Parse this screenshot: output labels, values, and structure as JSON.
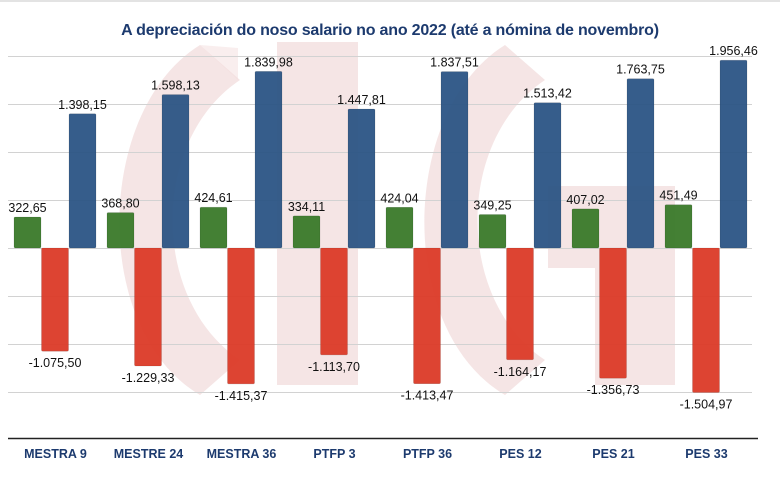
{
  "chart_data": {
    "type": "bar",
    "title": "A depreciación do noso salario no ano 2022 (até a nómina de novembro)",
    "xlabel": "",
    "ylabel": "",
    "ylim": [
      -2000,
      2000
    ],
    "y_gridline_step": 500,
    "grid": true,
    "legend": "none",
    "categories": [
      "MESTRA 9",
      "MESTRE 24",
      "MESTRA 36",
      "PTFP 3",
      "PTFP 36",
      "PES 12",
      "PES 21",
      "PES 33"
    ],
    "series": [
      {
        "name": "green",
        "color": "#3a7a2a",
        "values": [
          322.65,
          368.8,
          424.61,
          334.11,
          424.04,
          349.25,
          407.02,
          451.49
        ],
        "labels": [
          "322,65",
          "368,80",
          "424,61",
          "334,11",
          "424,04",
          "349,25",
          "407,02",
          "451,49"
        ]
      },
      {
        "name": "red",
        "color": "#dc3b28",
        "values": [
          -1075.5,
          -1229.33,
          -1415.37,
          -1113.7,
          -1413.47,
          -1164.17,
          -1356.73,
          -1504.97
        ],
        "labels": [
          "-1.075,50",
          "-1.229,33",
          "-1.415,37",
          "-1.113,70",
          "-1.413,47",
          "-1.164,17",
          "-1.356,73",
          "-1.504,97"
        ]
      },
      {
        "name": "blue",
        "color": "#2c5585",
        "values": [
          1398.15,
          1598.13,
          1839.98,
          1447.81,
          1837.51,
          1513.42,
          1763.75,
          1956.46
        ],
        "labels": [
          "1.398,15",
          "1.598,13",
          "1.839,98",
          "1.447,81",
          "1.837,51",
          "1.513,42",
          "1.763,75",
          "1.956,46"
        ]
      }
    ],
    "colors": {
      "title": "#1c3a6e",
      "category_label": "#1c3a6e",
      "gridline": "#d2d2d2",
      "axis": "#222222",
      "watermark": "#f3dede"
    }
  }
}
